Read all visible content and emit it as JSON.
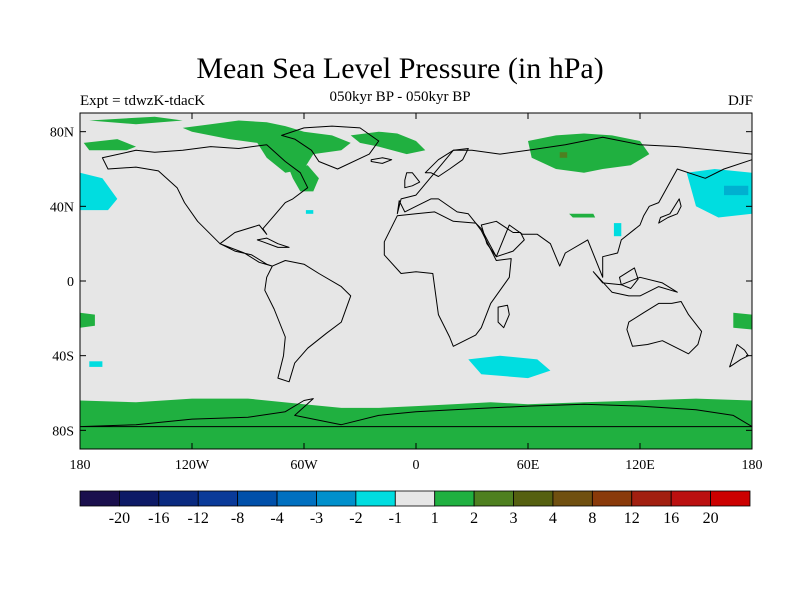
{
  "title": "Mean Sea Level Pressure (in hPa)",
  "left_label": "Expt = tdwzK-tdacK",
  "center_label": "050kyr BP - 050kyr BP",
  "right_label": "DJF",
  "colors": {
    "ocean": "#e6e6e6",
    "coast": "#000000",
    "pos1": "#20b040",
    "pos2": "#4e8020",
    "neg1": "#00dde0",
    "neg2": "#00b0d0"
  },
  "map": {
    "lon_range": [
      -180,
      180
    ],
    "lat_range": [
      -90,
      90
    ],
    "x_ticks": [
      {
        "lon": -180,
        "label": "180"
      },
      {
        "lon": -120,
        "label": "120W"
      },
      {
        "lon": -60,
        "label": "60W"
      },
      {
        "lon": 0,
        "label": "0"
      },
      {
        "lon": 60,
        "label": "60E"
      },
      {
        "lon": 120,
        "label": "120E"
      },
      {
        "lon": 180,
        "label": "180"
      }
    ],
    "y_ticks": [
      {
        "lat": 80,
        "label": "80N"
      },
      {
        "lat": 40,
        "label": "40N"
      },
      {
        "lat": 0,
        "label": "0"
      },
      {
        "lat": -40,
        "label": "40S"
      },
      {
        "lat": -80,
        "label": "80S"
      }
    ],
    "anomaly_regions": [
      {
        "name": "antarctic-ring",
        "category": "pos1",
        "lons": [
          -180,
          -150,
          -120,
          -90,
          -60,
          -40,
          -20,
          0,
          20,
          40,
          60,
          90,
          120,
          150,
          180,
          180,
          150,
          120,
          90,
          60,
          40,
          20,
          0,
          -20,
          -40,
          -60,
          -90,
          -120,
          -150,
          -180
        ],
        "lats": [
          -64,
          -65,
          -63,
          -63,
          -66,
          -68,
          -68,
          -67,
          -66,
          -65,
          -66,
          -65,
          -64,
          -63,
          -64,
          -90,
          -90,
          -90,
          -90,
          -90,
          -90,
          -90,
          -90,
          -90,
          -90,
          -90,
          -90,
          -90,
          -90,
          -90
        ]
      },
      {
        "name": "greenland-arctic",
        "category": "pos1",
        "lons": [
          -125,
          -110,
          -95,
          -80,
          -70,
          -60,
          -45,
          -35,
          -40,
          -55,
          -60,
          -70,
          -80,
          -85,
          -100,
          -120
        ],
        "lats": [
          82,
          84,
          86,
          85,
          83,
          80,
          78,
          74,
          70,
          68,
          60,
          58,
          66,
          74,
          76,
          80
        ]
      },
      {
        "name": "labrador",
        "category": "pos1",
        "lons": [
          -68,
          -58,
          -52,
          -55,
          -62,
          -66
        ],
        "lats": [
          60,
          62,
          55,
          48,
          48,
          55
        ]
      },
      {
        "name": "north-atlantic",
        "category": "pos1",
        "lons": [
          -35,
          -20,
          -10,
          0,
          5,
          -5,
          -20,
          -30
        ],
        "lats": [
          78,
          80,
          79,
          75,
          70,
          68,
          72,
          74
        ]
      },
      {
        "name": "siberia",
        "category": "pos1",
        "lons": [
          60,
          75,
          90,
          105,
          120,
          125,
          115,
          100,
          90,
          75,
          62
        ],
        "lats": [
          75,
          78,
          79,
          78,
          75,
          68,
          62,
          60,
          58,
          60,
          66
        ]
      },
      {
        "name": "siberia-core",
        "category": "pos2",
        "lons": [
          77,
          81,
          81,
          77
        ],
        "lats": [
          69,
          69,
          66,
          66
        ]
      },
      {
        "name": "alaska",
        "category": "pos1",
        "lons": [
          -178,
          -160,
          -150,
          -155,
          -175
        ],
        "lats": [
          74,
          76,
          72,
          70,
          70
        ]
      },
      {
        "name": "tibet",
        "category": "pos1",
        "lons": [
          82,
          95,
          96,
          84
        ],
        "lats": [
          36,
          36,
          34,
          34
        ]
      },
      {
        "name": "north-canada",
        "category": "pos1",
        "lons": [
          -175,
          -140,
          -125,
          -150
        ],
        "lats": [
          86,
          88,
          86,
          84
        ]
      },
      {
        "name": "west-pacific-south",
        "category": "pos1",
        "lons": [
          -180,
          -172,
          -172,
          -180
        ],
        "lats": [
          -17,
          -18,
          -24,
          -25
        ]
      },
      {
        "name": "east-pacific-south",
        "category": "pos1",
        "lons": [
          170,
          180,
          180,
          170
        ],
        "lats": [
          -17,
          -18,
          -26,
          -25
        ]
      },
      {
        "name": "pacific-north-east",
        "category": "neg1",
        "lons": [
          -180,
          -168,
          -160,
          -165,
          -180
        ],
        "lats": [
          58,
          55,
          44,
          38,
          38
        ]
      },
      {
        "name": "pacific-north-west",
        "category": "neg1",
        "lons": [
          145,
          160,
          180,
          180,
          162,
          150
        ],
        "lats": [
          58,
          60,
          58,
          36,
          34,
          40
        ]
      },
      {
        "name": "pacific-north-west-core",
        "category": "neg2",
        "lons": [
          165,
          178,
          178,
          165
        ],
        "lats": [
          51,
          51,
          46,
          46
        ]
      },
      {
        "name": "south-indian",
        "category": "neg1",
        "lons": [
          28,
          45,
          65,
          72,
          60,
          35
        ],
        "lats": [
          -42,
          -40,
          -42,
          -48,
          -52,
          -50
        ]
      },
      {
        "name": "mid-atlantic",
        "category": "neg1",
        "lons": [
          -59,
          -55,
          -55,
          -59
        ],
        "lats": [
          38,
          38,
          36,
          36
        ]
      },
      {
        "name": "pacific-south",
        "category": "neg1",
        "lons": [
          -175,
          -168,
          -168,
          -175
        ],
        "lats": [
          -43,
          -43,
          -46,
          -46
        ]
      },
      {
        "name": "china-spot",
        "category": "neg1",
        "lons": [
          106,
          110,
          110,
          106
        ],
        "lats": [
          31,
          31,
          24,
          24
        ]
      }
    ],
    "land_outlines": [
      {
        "name": "north-america",
        "lons": [
          -168,
          -150,
          -140,
          -125,
          -110,
          -95,
          -80,
          -70,
          -62,
          -58,
          -66,
          -70,
          -76,
          -82,
          -80,
          -84,
          -97,
          -105,
          -117,
          -124,
          -128,
          -138,
          -150,
          -165
        ],
        "lats": [
          66,
          70,
          69,
          70,
          72,
          71,
          73,
          64,
          58,
          50,
          44,
          42,
          35,
          28,
          25,
          30,
          26,
          20,
          32,
          42,
          50,
          59,
          61,
          60
        ]
      },
      {
        "name": "central-america",
        "lons": [
          -105,
          -92,
          -84,
          -77,
          -80,
          -88,
          -97
        ],
        "lats": [
          20,
          15,
          10,
          8,
          9,
          14,
          16
        ]
      },
      {
        "name": "south-america",
        "lons": [
          -77,
          -70,
          -60,
          -52,
          -40,
          -35,
          -40,
          -48,
          -58,
          -65,
          -68,
          -74,
          -71,
          -70,
          -76,
          -81,
          -80
        ],
        "lats": [
          8,
          11,
          9,
          4,
          -3,
          -8,
          -22,
          -28,
          -36,
          -44,
          -54,
          -52,
          -40,
          -30,
          -15,
          -5,
          2
        ]
      },
      {
        "name": "greenland",
        "lons": [
          -72,
          -60,
          -45,
          -30,
          -20,
          -25,
          -42,
          -52,
          -56,
          -65
        ],
        "lats": [
          78,
          82,
          83,
          82,
          75,
          68,
          60,
          64,
          70,
          76
        ]
      },
      {
        "name": "eurasia",
        "lons": [
          -10,
          -8,
          0,
          5,
          10,
          20,
          30,
          45,
          60,
          80,
          100,
          120,
          140,
          160,
          180,
          180,
          165,
          155,
          140,
          130,
          125,
          122,
          120,
          110,
          108,
          100,
          100,
          92,
          80,
          77,
          72,
          65,
          57,
          50,
          43,
          35,
          32,
          28,
          22,
          12,
          8,
          0,
          -6,
          -9
        ],
        "lats": [
          36,
          44,
          46,
          52,
          58,
          70,
          70,
          68,
          70,
          73,
          77,
          73,
          72,
          70,
          68,
          65,
          60,
          55,
          60,
          42,
          40,
          35,
          30,
          22,
          15,
          13,
          2,
          22,
          15,
          8,
          20,
          25,
          25,
          30,
          13,
          28,
          31,
          36,
          37,
          44,
          44,
          40,
          37,
          43
        ]
      },
      {
        "name": "scandinavia",
        "lons": [
          5,
          12,
          20,
          28,
          25,
          18,
          12,
          8
        ],
        "lats": [
          58,
          65,
          70,
          71,
          65,
          60,
          56,
          58
        ]
      },
      {
        "name": "uk",
        "lons": [
          -6,
          -2,
          2,
          -2,
          -5,
          -6
        ],
        "lats": [
          50,
          51,
          53,
          58,
          58,
          54
        ]
      },
      {
        "name": "africa",
        "lons": [
          -17,
          -10,
          0,
          10,
          20,
          32,
          35,
          43,
          51,
          50,
          40,
          35,
          32,
          20,
          18,
          12,
          9,
          0,
          -8,
          -17
        ],
        "lats": [
          21,
          35,
          36,
          37,
          32,
          31,
          27,
          11,
          12,
          2,
          -12,
          -25,
          -29,
          -35,
          -30,
          -18,
          4,
          5,
          4,
          14
        ]
      },
      {
        "name": "madagascar",
        "lons": [
          44,
          49,
          50,
          47,
          44
        ],
        "lats": [
          -14,
          -13,
          -18,
          -25,
          -22
        ]
      },
      {
        "name": "arabia",
        "lons": [
          35,
          43,
          52,
          56,
          58,
          52,
          43,
          38
        ],
        "lats": [
          30,
          32,
          26,
          26,
          22,
          16,
          13,
          20
        ]
      },
      {
        "name": "australia",
        "lons": [
          114,
          122,
          130,
          137,
          142,
          146,
          153,
          151,
          146,
          138,
          132,
          124,
          116,
          113
        ],
        "lats": [
          -22,
          -17,
          -12,
          -12,
          -11,
          -18,
          -27,
          -34,
          -39,
          -35,
          -32,
          -34,
          -35,
          -26
        ]
      },
      {
        "name": "new-zealand",
        "lons": [
          172,
          176,
          178,
          174,
          168
        ],
        "lats": [
          -34,
          -37,
          -40,
          -42,
          -46
        ]
      },
      {
        "name": "japan",
        "lons": [
          130,
          135,
          140,
          142,
          141,
          136,
          131
        ],
        "lats": [
          31,
          34,
          36,
          40,
          44,
          36,
          34
        ]
      },
      {
        "name": "indonesia",
        "lons": [
          95,
          105,
          114,
          120,
          130,
          140,
          132,
          120,
          110,
          100
        ],
        "lats": [
          5,
          -6,
          -8,
          -8,
          -3,
          -6,
          -1,
          2,
          -2,
          -1
        ]
      },
      {
        "name": "borneo",
        "lons": [
          109,
          117,
          119,
          115,
          110
        ],
        "lats": [
          2,
          7,
          1,
          -4,
          -2
        ]
      },
      {
        "name": "antarctica",
        "lons": [
          -180,
          -150,
          -120,
          -90,
          -70,
          -60,
          -55,
          -65,
          -40,
          -20,
          0,
          20,
          40,
          60,
          90,
          120,
          150,
          170,
          180
        ],
        "lats": [
          -78,
          -77,
          -74,
          -73,
          -70,
          -64,
          -63,
          -72,
          -77,
          -72,
          -70,
          -69,
          -68,
          -67,
          -66,
          -67,
          -69,
          -72,
          -78
        ]
      },
      {
        "name": "iceland",
        "lons": [
          -24,
          -18,
          -13,
          -18,
          -24
        ],
        "lats": [
          65,
          66,
          65,
          63,
          64
        ]
      },
      {
        "name": "caribbean",
        "lons": [
          -85,
          -80,
          -74,
          -68,
          -74,
          -82
        ],
        "lats": [
          22,
          23,
          20,
          18,
          18,
          21
        ]
      }
    ]
  },
  "colorbar": {
    "colors": [
      "#1a0f4d",
      "#0d1a66",
      "#0a2a80",
      "#0a3a99",
      "#0050aa",
      "#0070c0",
      "#0090cc",
      "#00dde0",
      "#e6e6e6",
      "#20b040",
      "#4e8020",
      "#556010",
      "#705010",
      "#8a3a0a",
      "#a22010",
      "#bb1010",
      "#cc0000"
    ],
    "labels": [
      "-20",
      "-16",
      "-12",
      "-8",
      "-4",
      "-3",
      "-2",
      "-1",
      "1",
      "2",
      "3",
      "4",
      "8",
      "12",
      "16",
      "20"
    ]
  }
}
